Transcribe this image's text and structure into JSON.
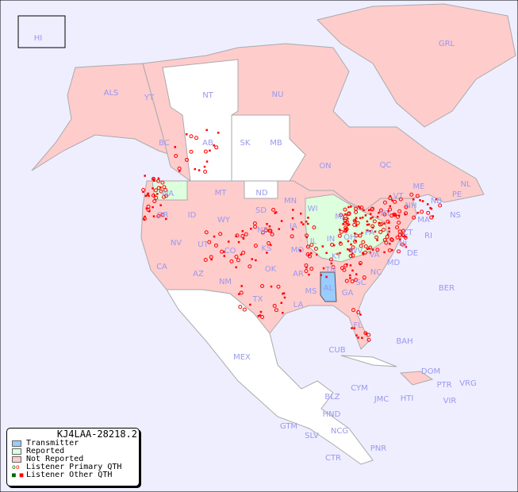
{
  "legend": {
    "title": "KJ4LAA-28218.2",
    "items": [
      {
        "label": "Transmitter",
        "color": "#99ccff"
      },
      {
        "label": "Reported",
        "color": "#ddffdd"
      },
      {
        "label": "Not Reported",
        "color": "#ffcccc"
      },
      {
        "label": "Listener Primary QTH",
        "color": "#ff0000"
      },
      {
        "label": "Listener Other QTH",
        "color": "#ff0000"
      }
    ]
  },
  "colors": {
    "ocean": "#eeeeff",
    "not_reported": "#ffcccc",
    "reported": "#ddffdd",
    "transmitter": "#99ccff",
    "unlisted": "#ffffff",
    "listener": "#ff0000",
    "label": "#9999ee"
  },
  "regions": [
    "HI",
    "ALS",
    "YT",
    "NT",
    "NU",
    "GRL",
    "BC",
    "AB",
    "SK",
    "MB",
    "ON",
    "QC",
    "NL",
    "NB",
    "PE",
    "NS",
    "WA",
    "OR",
    "ID",
    "MT",
    "WY",
    "ND",
    "SD",
    "NE",
    "MN",
    "IA",
    "WI",
    "MI",
    "IL",
    "IN",
    "OH",
    "PA",
    "NY",
    "VT",
    "NH",
    "ME",
    "MA",
    "CT",
    "RI",
    "NJ",
    "DE",
    "MD",
    "WV",
    "VA",
    "KY",
    "TN",
    "NC",
    "SC",
    "GA",
    "AL",
    "MS",
    "LA",
    "AR",
    "MO",
    "KS",
    "OK",
    "TX",
    "NM",
    "AZ",
    "UT",
    "CO",
    "NV",
    "CA",
    "FL",
    "BER",
    "BAH",
    "CUB",
    "MEX",
    "DOM",
    "PTR",
    "VRG",
    "VIR",
    "HTI",
    "JMC",
    "CYM",
    "BLZ",
    "HND",
    "GTM",
    "SLV",
    "NCG",
    "CTR",
    "PNR"
  ]
}
